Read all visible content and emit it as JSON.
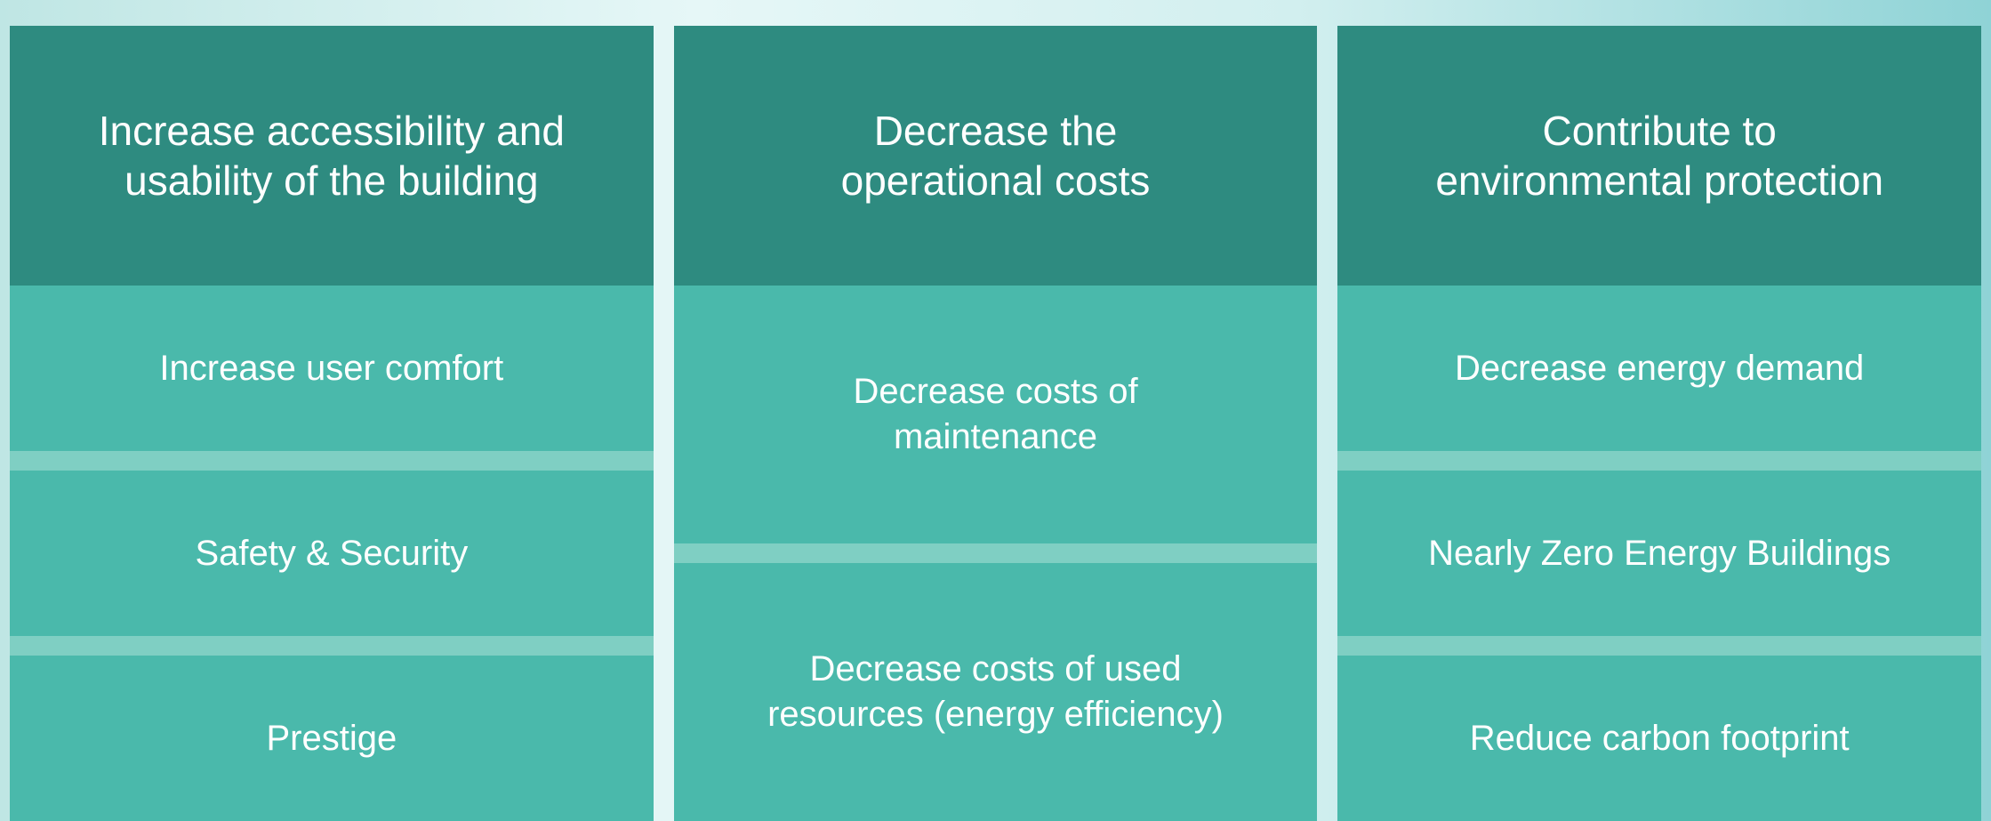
{
  "columns": [
    {
      "header": [
        "Increase accessibility and",
        "usability of the building"
      ],
      "items": [
        [
          "Increase user comfort"
        ],
        [
          "Safety & Security"
        ],
        [
          "Prestige"
        ]
      ]
    },
    {
      "header": [
        "Decrease the",
        "operational costs"
      ],
      "items": [
        [
          "Decrease costs of",
          "maintenance"
        ],
        [
          "Decrease costs of used",
          "resources (energy efficiency)"
        ]
      ]
    },
    {
      "header": [
        "Contribute to",
        "environmental protection"
      ],
      "items": [
        [
          "Decrease energy demand"
        ],
        [
          "Nearly Zero Energy Buildings"
        ],
        [
          "Reduce carbon footprint"
        ]
      ]
    }
  ]
}
